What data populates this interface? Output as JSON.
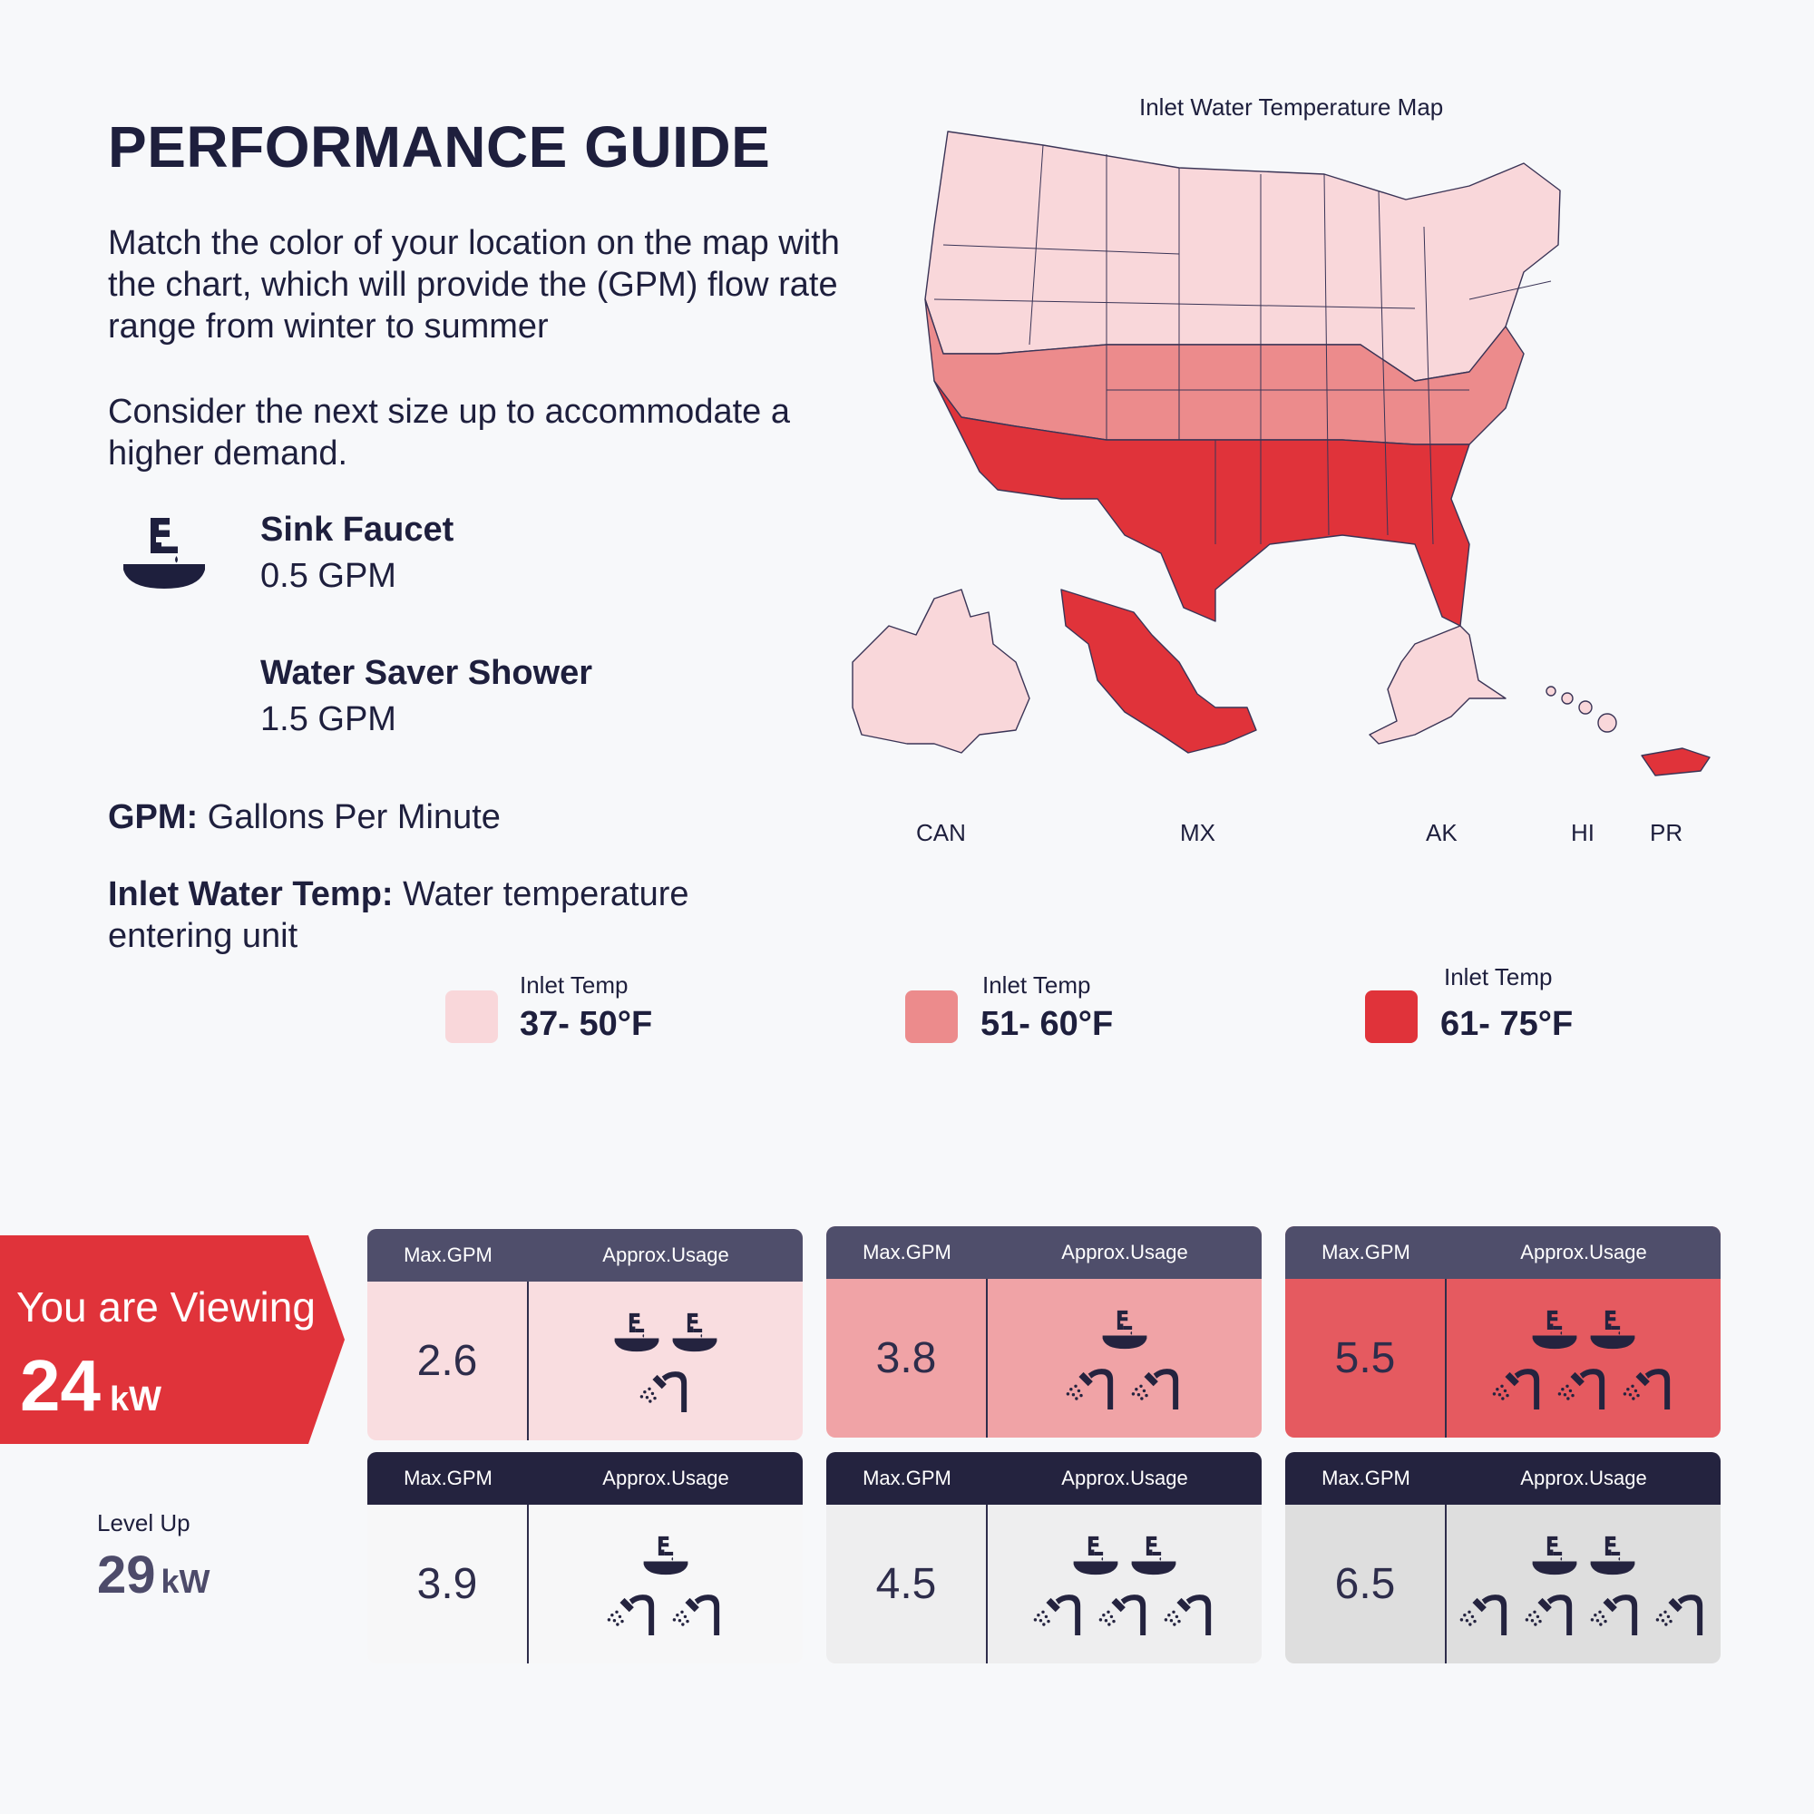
{
  "title": "PERFORMANCE GUIDE",
  "intro_text": "Match the color of your location on the map with the chart, which will provide the (GPM) flow rate range from winter to summer",
  "next_size_text": "Consider the next size up to accommodate a higher demand.",
  "fixtures": [
    {
      "name": "Sink Faucet",
      "flow": "0.5 GPM",
      "icon": "sink-faucet-icon"
    },
    {
      "name": "Water Saver Shower",
      "flow": "1.5 GPM",
      "icon": "shower-icon"
    }
  ],
  "definitions": {
    "gpm_term": "GPM:",
    "gpm_text": "Gallons Per Minute",
    "inlet_term": "Inlet Water Temp:",
    "inlet_text": "Water temperature entering unit"
  },
  "map": {
    "title": "Inlet Water Temperature Map",
    "region_labels": [
      "CAN",
      "MX",
      "AK",
      "HI",
      "PR"
    ]
  },
  "legend": [
    {
      "caption": "Inlet Temp",
      "range": "37- 50°F",
      "color": "#f9d7da"
    },
    {
      "caption": "Inlet Temp",
      "range": "51- 60°F",
      "color": "#ec8b8c"
    },
    {
      "caption": "Inlet Temp",
      "range": "61- 75°F",
      "color": "#e0333a"
    }
  ],
  "viewing": {
    "label": "You are Viewing",
    "kw": "24",
    "unit": "kW",
    "color": "#e0333a"
  },
  "level_up": {
    "label": "Level Up",
    "kw": "29",
    "unit": "kW"
  },
  "cards": [
    {
      "header_gpm": "Max.GPM",
      "header_usage": "Approx.Usage",
      "gpm": "2.6",
      "sinks": 2,
      "showers": 1,
      "head_color": "#4f4e6b",
      "body_color": "#f9dde0"
    },
    {
      "header_gpm": "Max.GPM",
      "header_usage": "Approx.Usage",
      "gpm": "3.8",
      "sinks": 1,
      "showers": 2,
      "head_color": "#4f4e6b",
      "body_color": "#f0a3a6"
    },
    {
      "header_gpm": "Max.GPM",
      "header_usage": "Approx.Usage",
      "gpm": "5.5",
      "sinks": 2,
      "showers": 3,
      "head_color": "#4f4e6b",
      "body_color": "#e55a60"
    },
    {
      "header_gpm": "Max.GPM",
      "header_usage": "Approx.Usage",
      "gpm": "3.9",
      "sinks": 1,
      "showers": 2,
      "head_color": "#24233f",
      "body_color": "#f7f7f8"
    },
    {
      "header_gpm": "Max.GPM",
      "header_usage": "Approx.Usage",
      "gpm": "4.5",
      "sinks": 2,
      "showers": 3,
      "head_color": "#24233f",
      "body_color": "#eeeeef"
    },
    {
      "header_gpm": "Max.GPM",
      "header_usage": "Approx.Usage",
      "gpm": "6.5",
      "sinks": 2,
      "showers": 4,
      "head_color": "#24233f",
      "body_color": "#dedede"
    }
  ]
}
